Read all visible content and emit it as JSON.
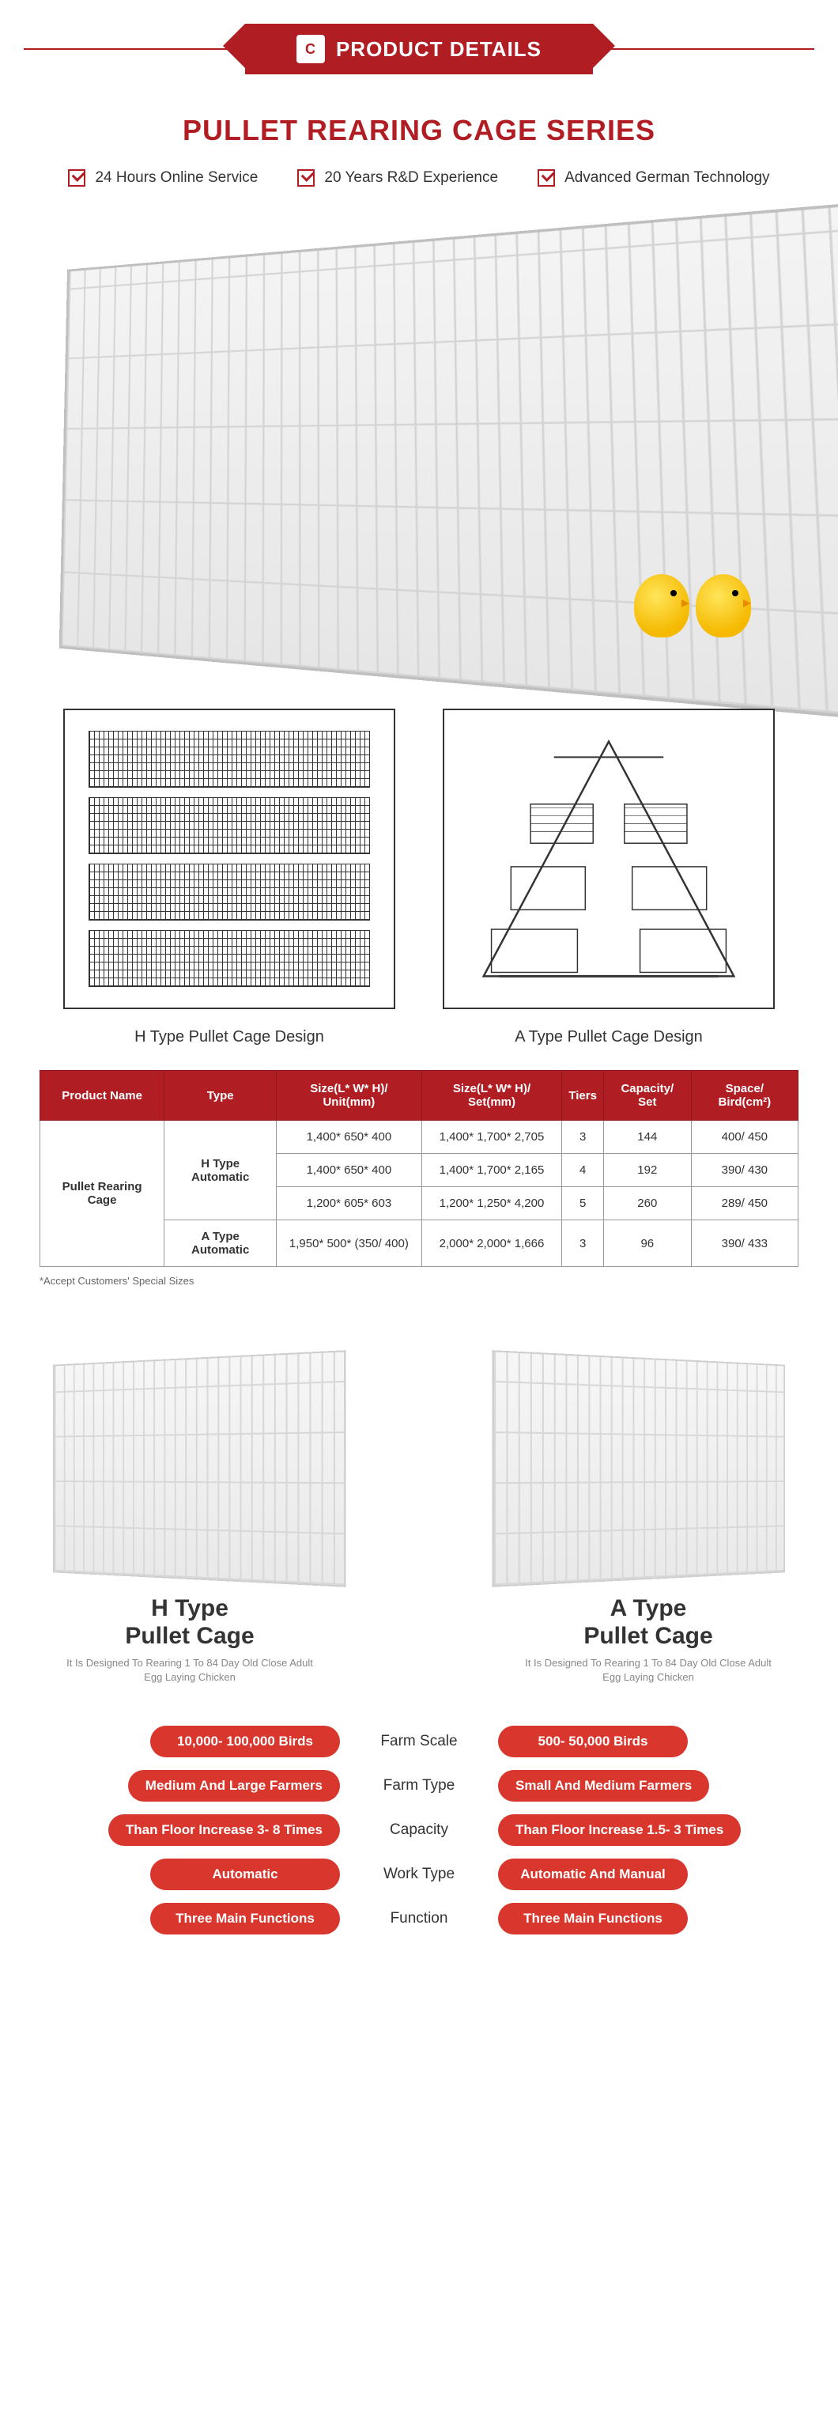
{
  "colors": {
    "brand_red": "#b01e24",
    "pill_red": "#d9362e",
    "text": "#333333",
    "muted": "#888888",
    "border_gray": "#999999",
    "bg": "#ffffff"
  },
  "banner": {
    "label": "PRODUCT DETAILS",
    "logo_text": "C"
  },
  "section_title": "PULLET REARING CAGE SERIES",
  "badges": [
    "24 Hours Online Service",
    "20 Years R&D Experience",
    "Advanced German Technology"
  ],
  "diagram_labels": {
    "h": "H Type Pullet Cage Design",
    "a": "A Type Pullet Cage Design"
  },
  "spec_table": {
    "headers": [
      "Product Name",
      "Type",
      "Size(L* W* H)/ Unit(mm)",
      "Size(L* W* H)/ Set(mm)",
      "Tiers",
      "Capacity/ Set",
      "Space/ Bird(cm²)"
    ],
    "product_name": "Pullet Rearing Cage",
    "groups": [
      {
        "type": "H Type Automatic",
        "rows": [
          {
            "unit": "1,400* 650* 400",
            "set": "1,400* 1,700* 2,705",
            "tiers": "3",
            "capacity": "144",
            "space": "400/ 450"
          },
          {
            "unit": "1,400* 650* 400",
            "set": "1,400* 1,700* 2,165",
            "tiers": "4",
            "capacity": "192",
            "space": "390/ 430"
          },
          {
            "unit": "1,200* 605* 603",
            "set": "1,200* 1,250* 4,200",
            "tiers": "5",
            "capacity": "260",
            "space": "289/ 450"
          }
        ]
      },
      {
        "type": "A Type Automatic",
        "rows": [
          {
            "unit": "1,950* 500* (350/ 400)",
            "set": "2,000* 2,000* 1,666",
            "tiers": "3",
            "capacity": "96",
            "space": "390/ 433"
          }
        ]
      }
    ],
    "note": "*Accept Customers' Special Sizes"
  },
  "compare": {
    "left": {
      "title_l1": "H Type",
      "title_l2": "Pullet  Cage",
      "sub": "It Is Designed To Rearing 1 To 84 Day Old Close Adult Egg Laying Chicken"
    },
    "right": {
      "title_l1": "A Type",
      "title_l2": "Pullet  Cage",
      "sub": "It Is Designed To Rearing 1 To 84 Day Old Close Adult Egg Laying Chicken"
    },
    "rows": [
      {
        "left": "10,000- 100,000 Birds",
        "label": "Farm Scale",
        "right": "500- 50,000 Birds"
      },
      {
        "left": "Medium And Large Farmers",
        "label": "Farm Type",
        "right": "Small And Medium Farmers"
      },
      {
        "left": "Than Floor Increase 3- 8 Times",
        "label": "Capacity",
        "right": "Than Floor Increase 1.5- 3 Times"
      },
      {
        "left": "Automatic",
        "label": "Work Type",
        "right": "Automatic And Manual"
      },
      {
        "left": "Three Main Functions",
        "label": "Function",
        "right": "Three Main Functions"
      }
    ]
  }
}
